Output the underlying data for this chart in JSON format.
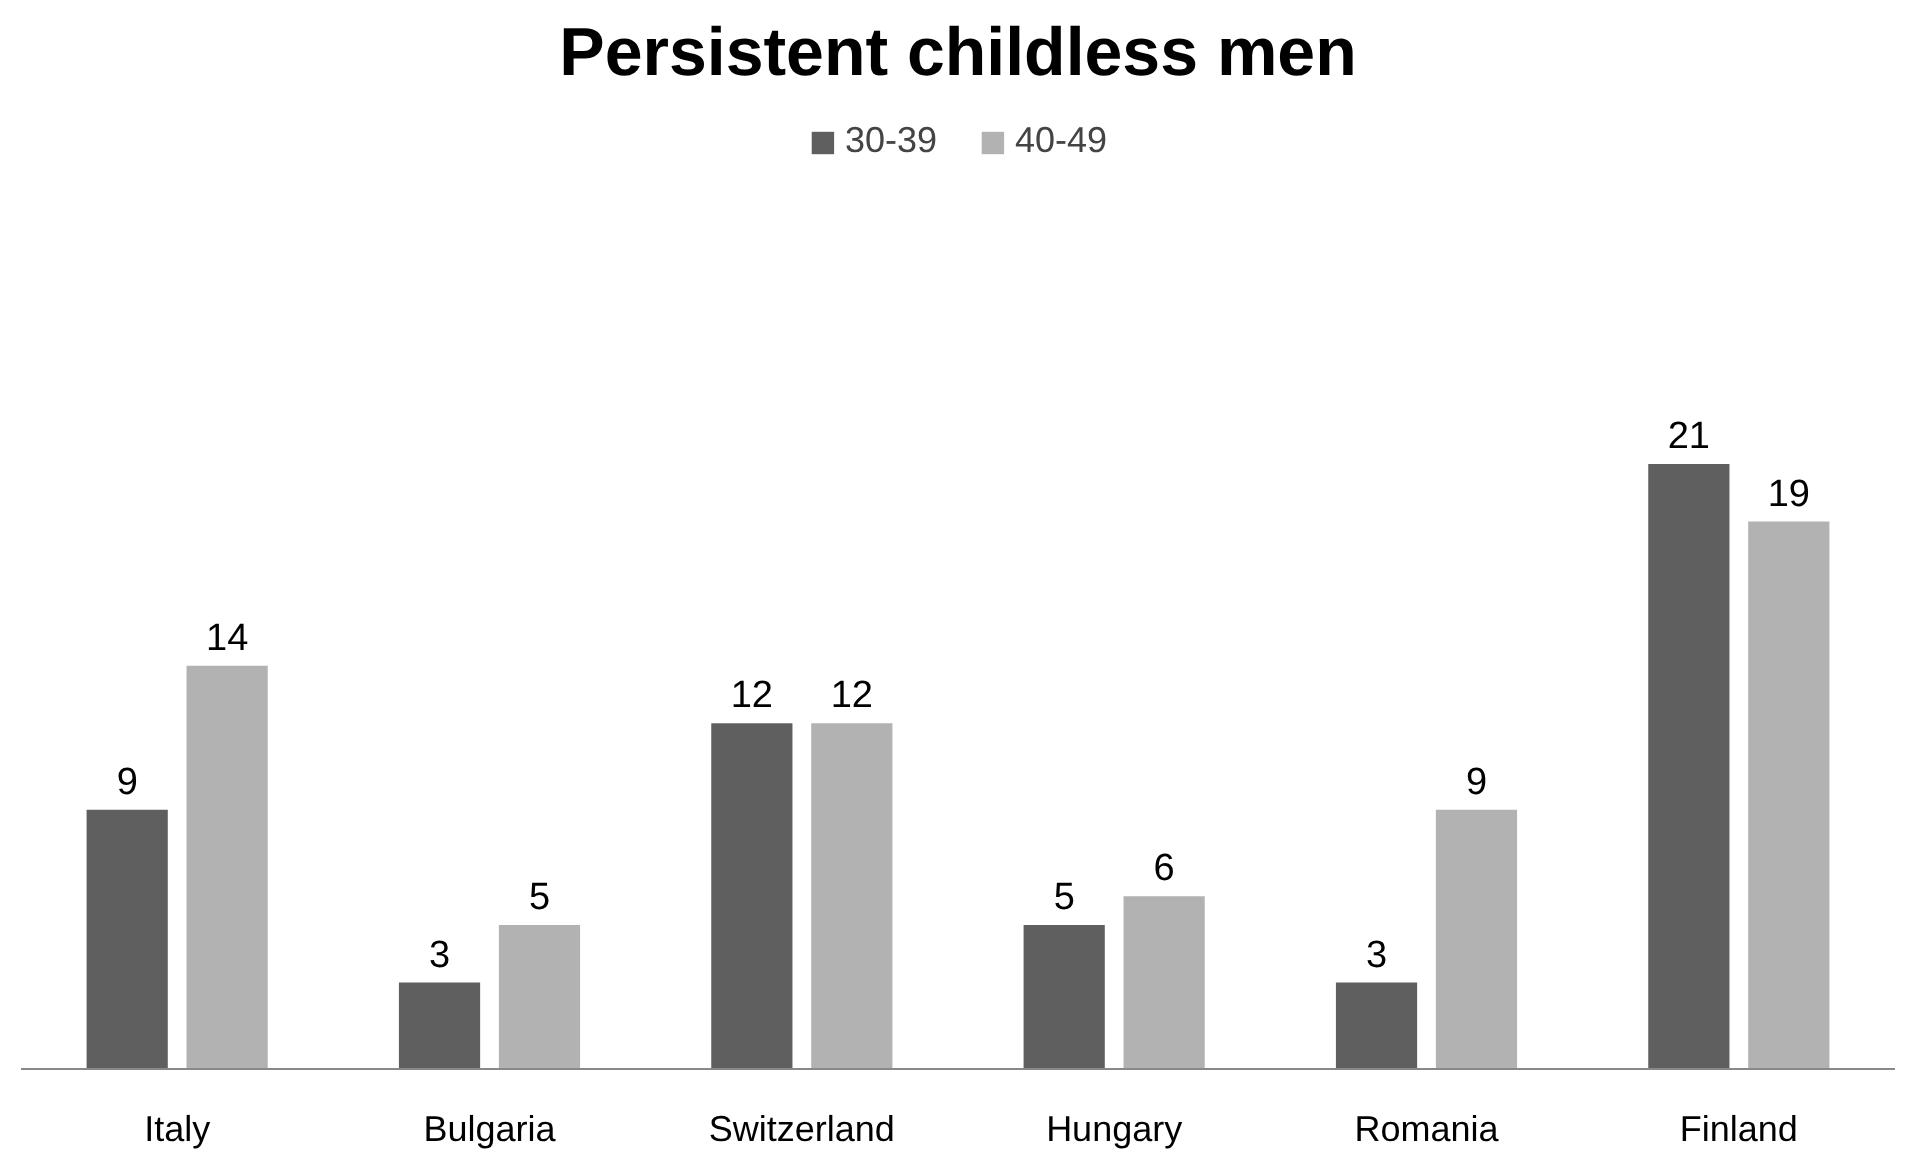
{
  "chart_data": {
    "type": "bar",
    "title": "Persistent childless men",
    "categories": [
      "Italy",
      "Bulgaria",
      "Switzerland",
      "Hungary",
      "Romania",
      "Finland"
    ],
    "series": [
      {
        "name": "30-39",
        "color": "#5f5f5f",
        "values": [
          9,
          3,
          12,
          5,
          3,
          21
        ]
      },
      {
        "name": "40-49",
        "color": "#b2b2b2",
        "values": [
          14,
          5,
          12,
          6,
          9,
          19
        ]
      }
    ],
    "data_labels": true,
    "legend": "top"
  }
}
